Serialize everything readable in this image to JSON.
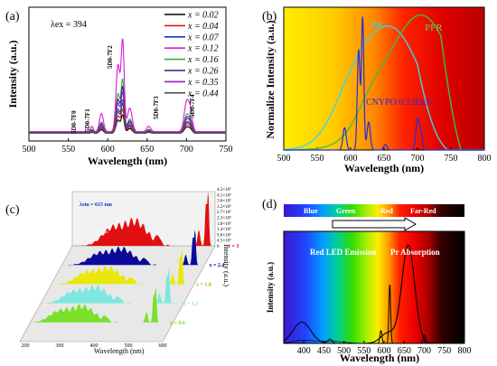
{
  "chart_data": [
    {
      "panel": "(a)",
      "type": "line",
      "xlabel": "Wavelength (nm)",
      "ylabel": "Intensity (a.u.)",
      "xlim": [
        500,
        750
      ],
      "xticks": [
        "500",
        "550",
        "600",
        "650",
        "700",
        "750"
      ],
      "annotation": "λex = 394",
      "transitions": [
        "5D0-7F0",
        "5D0-7F1",
        "5D0-7F2",
        "5D0-7F3",
        "5D0-7F4"
      ],
      "legend_position": "top-right",
      "series": [
        {
          "name": "x = 0.02",
          "color": "#000000",
          "scale": 0.2
        },
        {
          "name": "x = 0.04",
          "color": "#e8191b",
          "scale": 0.26
        },
        {
          "name": "x = 0.07",
          "color": "#1d2fcf",
          "scale": 0.32
        },
        {
          "name": "x = 0.12",
          "color": "#e01ad7",
          "scale": 1.0
        },
        {
          "name": "x = 0.16",
          "color": "#37a93a",
          "scale": 0.58
        },
        {
          "name": "x = 0.26",
          "color": "#1b2a8a",
          "scale": 0.5
        },
        {
          "name": "x = 0.35",
          "color": "#9a1bd0",
          "scale": 0.44
        },
        {
          "name": "x = 0.44",
          "color": "#555555",
          "scale": 0.36
        }
      ],
      "peaks": [
        {
          "x": 580,
          "h": 0.05,
          "w": 1.5
        },
        {
          "x": 592,
          "h": 0.17,
          "w": 2.5
        },
        {
          "x": 613,
          "h": 0.62,
          "w": 2.5
        },
        {
          "x": 619,
          "h": 0.83,
          "w": 2.0
        },
        {
          "x": 628,
          "h": 0.22,
          "w": 3.0
        },
        {
          "x": 652,
          "h": 0.05,
          "w": 2.5
        },
        {
          "x": 700,
          "h": 0.27,
          "w": 3.0
        },
        {
          "x": 705,
          "h": 0.17,
          "w": 2.5
        }
      ]
    },
    {
      "panel": "(b)",
      "type": "line",
      "xlabel": "Wavelength (nm)",
      "ylabel": "Normalize Intensity (a.u.)",
      "xlim": [
        500,
        800
      ],
      "xticks": [
        "500",
        "550",
        "600",
        "650",
        "700",
        "750",
        "800"
      ],
      "labels": {
        "pr": "PR",
        "pfr": "PFR",
        "sample": "CNYPO:0.12Eu3+"
      },
      "series": [
        {
          "name": "PR",
          "color": "#3fd3e8",
          "center": 660,
          "width": 48,
          "peak": 0.87
        },
        {
          "name": "PFR",
          "color": "#3fbf3f",
          "center": 705,
          "width": 52,
          "peak": 0.97
        },
        {
          "name": "CNYPO:0.12Eu3+",
          "color": "#2a2ad8"
        }
      ]
    },
    {
      "panel": "(c)",
      "type": "line",
      "xlabel": "Wavelength (nm)",
      "ylabel": "Intensity (a.u.)",
      "xticks": [
        "200",
        "300",
        "400",
        "500",
        "600"
      ],
      "zticks": [
        "0",
        "4.5×10⁵",
        "9.0×10⁵",
        "1.4×10⁶",
        "1.8×10⁶",
        "2.3×10⁶",
        "2.7×10⁶",
        "3.2×10⁶",
        "3.6×10⁶",
        "4.1×10⁶",
        "4.5×10⁶"
      ],
      "annotation_em": "λem = 615 nm",
      "annotation_ex": "λex = 394 nm",
      "series": [
        {
          "name": "x = 3",
          "color": "#e11010"
        },
        {
          "name": "x = 2.4",
          "color": "#0a0a9a"
        },
        {
          "name": "x = 1.8",
          "color": "#e8e80a"
        },
        {
          "name": "x = 1.2",
          "color": "#7ee8e0"
        },
        {
          "name": "x = 0.6",
          "color": "#7ae02a"
        }
      ]
    },
    {
      "panel": "(d)",
      "type": "line",
      "xlabel": "Wavelength (nm)",
      "ylabel": "Intensity (a.u.)",
      "xlim": [
        350,
        800
      ],
      "xticks": [
        "400",
        "450",
        "500",
        "550",
        "600",
        "650",
        "700",
        "750",
        "800"
      ],
      "bar_labels": [
        "Blue",
        "Green",
        "Red",
        "Far-Red"
      ],
      "annotations": {
        "emission": "Red LED Emission",
        "absorption": "Pr Absorption"
      }
    }
  ]
}
